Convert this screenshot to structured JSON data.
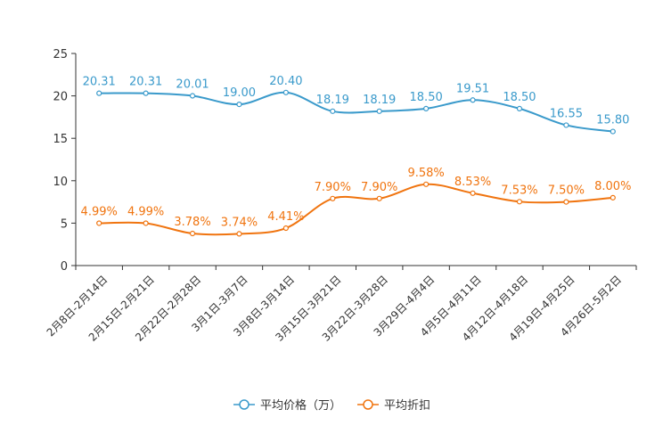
{
  "chart_data": {
    "type": "line",
    "categories": [
      "2月8日-2月14日",
      "2月15日-2月21日",
      "2月22日-2月28日",
      "3月1日-3月7日",
      "3月8日-3月14日",
      "3月15日-3月21日",
      "3月22日-3月28日",
      "3月29日-4月4日",
      "4月5日-4月11日",
      "4月12日-4月18日",
      "4月19日-4月25日",
      "4月26日-5月2日"
    ],
    "series": [
      {
        "name": "平均价格（万）",
        "color": "#3a9acb",
        "values": [
          20.31,
          20.31,
          20.01,
          19.0,
          20.4,
          18.19,
          18.19,
          18.5,
          19.51,
          18.5,
          16.55,
          15.8
        ],
        "labels": [
          "20.31",
          "20.31",
          "20.01",
          "19.00",
          "20.40",
          "18.19",
          "18.19",
          "18.50",
          "19.51",
          "18.50",
          "16.55",
          "15.80"
        ]
      },
      {
        "name": "平均折扣",
        "color": "#f0740f",
        "values": [
          4.99,
          4.99,
          3.78,
          3.74,
          4.41,
          7.9,
          7.9,
          9.58,
          8.53,
          7.53,
          7.5,
          8.0
        ],
        "labels": [
          "4.99%",
          "4.99%",
          "3.78%",
          "3.74%",
          "4.41%",
          "7.90%",
          "7.90%",
          "9.58%",
          "8.53%",
          "7.53%",
          "7.50%",
          "8.00%"
        ]
      }
    ],
    "ylim": [
      0,
      25
    ],
    "yticks": [
      "0",
      "5",
      "10",
      "15",
      "20",
      "25"
    ],
    "legend": "bottom-center",
    "grid": false,
    "title": "",
    "xlabel": "",
    "ylabel": ""
  }
}
